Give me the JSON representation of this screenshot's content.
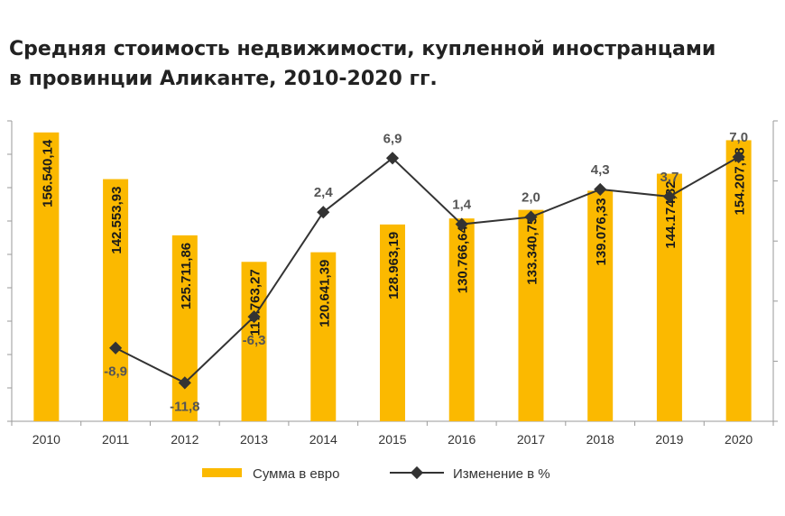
{
  "title_line1": "Средняя стоимость недвижимости, купленной иностранцами",
  "title_line2": "в провинции Аликанте, 2010-2020 гг.",
  "chart_data": {
    "type": "bar",
    "categories": [
      "2010",
      "2011",
      "2012",
      "2013",
      "2014",
      "2015",
      "2016",
      "2017",
      "2018",
      "2019",
      "2020"
    ],
    "series": [
      {
        "name": "Сумма в евро",
        "type": "bar",
        "axis": "left",
        "color": "#FBB900",
        "values": [
          156540.14,
          142553.93,
          125711.86,
          117763.27,
          120641.39,
          128963.19,
          130766.64,
          133340.75,
          139076.33,
          144174.82,
          154207.78
        ],
        "labels": [
          "156.540,14",
          "142.553,93",
          "125.711,86",
          "117.763,27",
          "120.641,39",
          "128.963,19",
          "130.766,64",
          "133.340,75",
          "139.076,33",
          "144.174,82",
          "154.207,78"
        ]
      },
      {
        "name": "Изменение в %",
        "type": "line",
        "axis": "right",
        "color": "#333333",
        "values": [
          null,
          -8.9,
          -11.8,
          -6.3,
          2.4,
          6.9,
          1.4,
          2.0,
          4.3,
          3.7,
          7.0
        ],
        "labels": [
          "",
          "-8,9",
          "-11,8",
          "-6,3",
          "2,4",
          "6,9",
          "1,4",
          "2,0",
          "4,3",
          "3,7",
          "7,0"
        ]
      }
    ],
    "y_left_range": [
      70000,
      160000
    ],
    "y_right_range": [
      -15,
      10
    ],
    "legend_position": "bottom",
    "grid": false
  }
}
